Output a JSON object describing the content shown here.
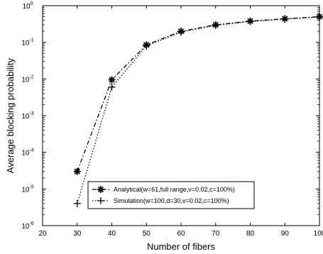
{
  "chart_data": {
    "type": "line",
    "title": "",
    "xlabel": "Number of fibers",
    "ylabel": "Average blocking probability",
    "xlim": [
      20,
      100
    ],
    "ylim": [
      1e-06,
      1
    ],
    "yscale": "log",
    "grid": false,
    "legend_position": "lower-right",
    "x_ticks": [
      "20",
      "30",
      "40",
      "50",
      "60",
      "70",
      "80",
      "90",
      "100"
    ],
    "y_ticks": [
      {
        "base": "10",
        "exp": "0"
      },
      {
        "base": "10",
        "exp": "-1"
      },
      {
        "base": "10",
        "exp": "-2"
      },
      {
        "base": "10",
        "exp": "-3"
      },
      {
        "base": "10",
        "exp": "-4"
      },
      {
        "base": "10",
        "exp": "-5"
      },
      {
        "base": "10",
        "exp": "-6"
      }
    ],
    "series": [
      {
        "name": "Analytical(w=61,full range,v=0.02,c=100%)",
        "marker": "asterisk",
        "line": "dash-dot",
        "color": "#000000",
        "x": [
          30,
          40,
          50,
          60,
          70,
          80,
          90,
          100
        ],
        "y": [
          3e-05,
          0.0095,
          0.085,
          0.2,
          0.3,
          0.38,
          0.44,
          0.5
        ]
      },
      {
        "name": "Simulation(w=100,d=30,v=0.02,c=100%)",
        "marker": "plus",
        "line": "dotted",
        "color": "#000000",
        "x": [
          30,
          40,
          50,
          60,
          70,
          80,
          90,
          100
        ],
        "y": [
          4e-06,
          0.006,
          0.08,
          0.19,
          0.29,
          0.37,
          0.43,
          0.49
        ]
      }
    ]
  }
}
